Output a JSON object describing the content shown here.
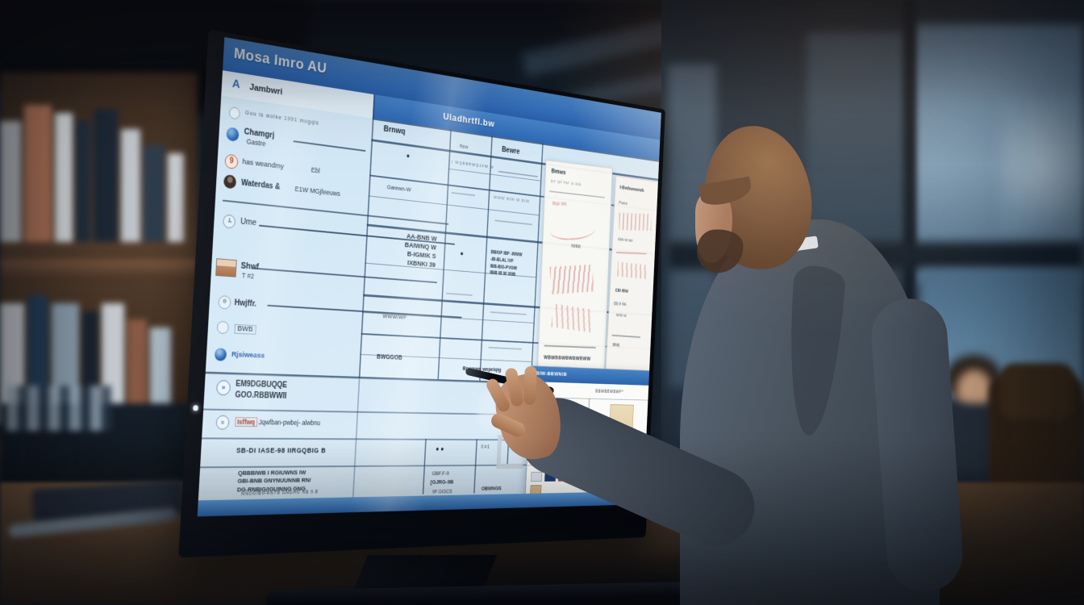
{
  "palette": {
    "accent_blue": "#3b79c3",
    "screen_bg": "#d7e9f6",
    "band_blue": "#3e7fc6",
    "grid_line": "#28507c",
    "suit_gray": "#4e5a68",
    "desk_wood": "#5d452f",
    "popup_title_blue": "#3a76bb"
  },
  "screen": {
    "appbar": {
      "title": "Mosa Imro AU"
    },
    "toolbar": {
      "marker": "A",
      "label": "Jambwri"
    },
    "band": {
      "title": "Uladhrtfl.bw"
    },
    "sidebar": {
      "items": [
        {
          "label": "Gou is wolke 1991 mogqls"
        },
        {
          "label": "Chamgrj",
          "sub": "Gastre"
        },
        {
          "label": "has weandmy",
          "sub": "Ebl"
        },
        {
          "label": "Waterdas &",
          "sub": "E1W MGjfeeuws"
        },
        {
          "label": "Ume"
        },
        {
          "label": "Shwf",
          "sub": "T #2"
        },
        {
          "label": "Hwjffr."
        },
        {
          "label": "BWB"
        },
        {
          "label": "Rjsiweass"
        }
      ]
    },
    "table": {
      "col_a_header": "Brnwq",
      "col_c_header": "Bewre",
      "col_b_small": "Rew",
      "col_b_line": "I WQBBRWQ1FW W",
      "cell_a1": "●",
      "cell_a2": "Garewn-W",
      "numbers": [
        "AA-BNB  W",
        "BAIWNQ  W",
        "B-IGMIK  S",
        "IXBNKI  39"
      ],
      "cell_a4": "WWWIWF",
      "cell_a5": "BWGGOB",
      "cell_b_dot": "●",
      "cell_c_top": "WWW BIW W BIW",
      "c_block": [
        "BBIGF IBF -WWW",
        "-BI-BLAL IVF",
        "IBB-BIG-PVGW",
        "IBIB IB W 30IB"
      ],
      "cell_d_dot": "●",
      "cell_d_b": "B"
    },
    "panels": {
      "p1": {
        "header": "Bmws",
        "tiny_top": "BIF IBF PBF IB IBIB",
        "notes": [
          "IBqk  W9",
          "IWBB",
          "WBWBBWBWBWBWW",
          "9F  IWWWWW",
          "[BWWWWWF]"
        ]
      },
      "p2": {
        "header": "I-Bwbwwwwb",
        "sub": "Pwws",
        "notes": [
          "IBW-W WF",
          "EBI IBW",
          "(B)-9 IW-",
          "IWW W",
          "IBWj"
        ]
      }
    },
    "bottom": {
      "hi1_line1": "EM9DGBUQQE",
      "hi1_line2": "GOO.RBBWWII",
      "hi2_lead": "Isffwq",
      "hi2_rest": "Jqwfban-pwbej- alwbnu",
      "pre_popup": "Bperswq wepelqig",
      "row1_label": "SB-DI IASE-98 IIRGQBIG B",
      "row1_b": "●  ●",
      "row1_c": "0 i=1",
      "row1_d": "9F-4 ●",
      "row2_lines": [
        "QBBBIWB I RGIUWNS IW",
        "GBI-BNB GNYNUUNNB RN/",
        "DG-RNBIG/IGUINNG GNG"
      ],
      "row2_b1": "GBF.F-9",
      "row2_b2": "[GJRG-9B",
      "row3_b": "9F  GIGCS",
      "row3_c": "OBWNGS",
      "footer": "NNGGIBIFRNTB GNGHG   NB 9.B"
    },
    "popup": {
      "title": "BIW-BBWNIB",
      "note_left": "F7W",
      "note_right": "BBWBBWBWF*",
      "note_mid": "IBWQIB",
      "caption": "IBWJWW9",
      "chips": [
        "#dfe6ee",
        "#1d3c71",
        "#c14436",
        "#e8e2d6",
        "#d2691e",
        "#b8452e",
        "#dcd6c8",
        "#2a9d8f",
        "#d9b98a"
      ]
    }
  }
}
